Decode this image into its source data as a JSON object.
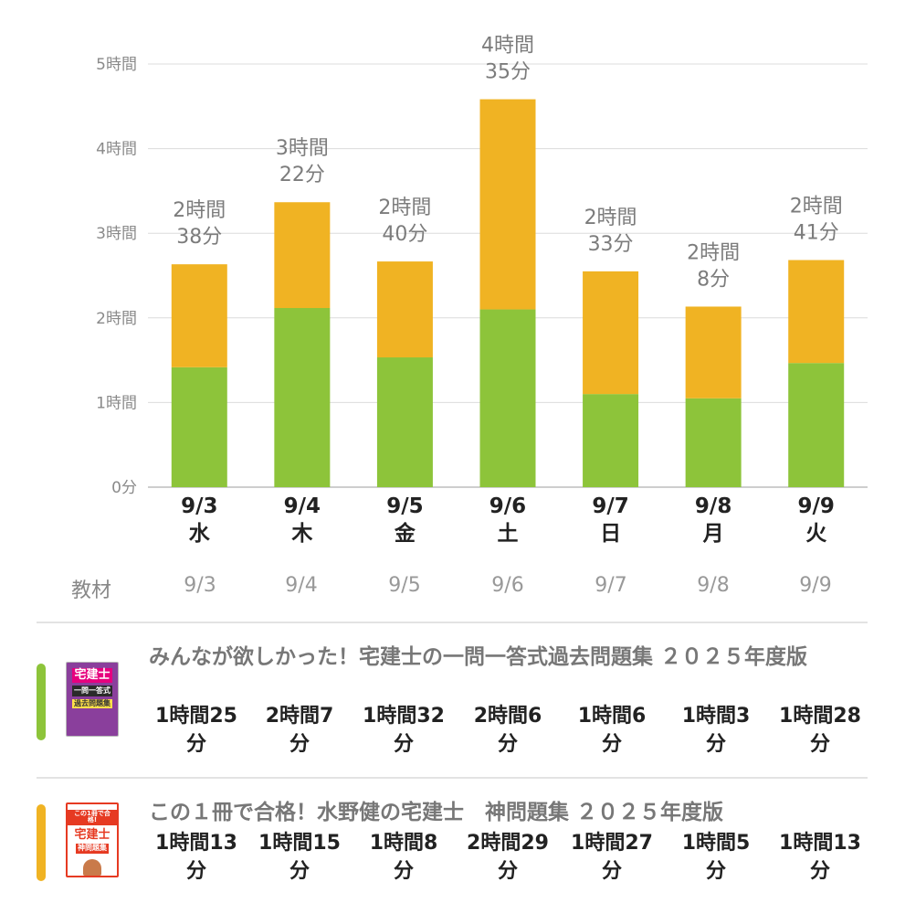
{
  "chart_data": {
    "type": "bar",
    "stacked": true,
    "categories": [
      "9/3",
      "9/4",
      "9/5",
      "9/6",
      "9/7",
      "9/8",
      "9/9"
    ],
    "weekdays": [
      "水",
      "木",
      "金",
      "土",
      "日",
      "月",
      "火"
    ],
    "series": [
      {
        "name": "みんなが欲しかった！宅建士の一問一答式過去問題集 ２０２５年度版",
        "color": "#8dc43a",
        "values_minutes": [
          85,
          127,
          92,
          126,
          66,
          63,
          88
        ]
      },
      {
        "name": "この１冊で合格！水野健の宅建士　神問題集 ２０２５年度版",
        "color": "#f0b323",
        "values_minutes": [
          73,
          75,
          68,
          149,
          87,
          65,
          73
        ]
      }
    ],
    "totals": [
      [
        "2時間",
        "38分"
      ],
      [
        "3時間",
        "22分"
      ],
      [
        "2時間",
        "40分"
      ],
      [
        "4時間",
        "35分"
      ],
      [
        "2時間",
        "33分"
      ],
      [
        "2時間",
        "8分"
      ],
      [
        "2時間",
        "41分"
      ]
    ],
    "y_ticks": [
      "0分",
      "1時間",
      "2時間",
      "3時間",
      "4時間",
      "5時間"
    ],
    "ylim_minutes": [
      0,
      300
    ],
    "grid": true
  },
  "materials_header": {
    "label": "教材",
    "dates": [
      "9/3",
      "9/4",
      "9/5",
      "9/6",
      "9/7",
      "9/8",
      "9/9"
    ]
  },
  "materials": [
    {
      "title": "みんなが欲しかった！宅建士の一問一答式過去問題集 ２０２５年度版",
      "color": "#8dc43a",
      "cover_text": [
        "宅建士",
        "一問一答式",
        "過去問題集"
      ],
      "times": [
        [
          "1時間25",
          "分"
        ],
        [
          "2時間7",
          "分"
        ],
        [
          "1時間32",
          "分"
        ],
        [
          "2時間6",
          "分"
        ],
        [
          "1時間6",
          "分"
        ],
        [
          "1時間3",
          "分"
        ],
        [
          "1時間28",
          "分"
        ]
      ]
    },
    {
      "title": "この１冊で合格！水野健の宅建士　神問題集 ２０２５年度版",
      "color": "#f0b323",
      "cover_text": [
        "この1冊で合格!",
        "宅建士",
        "神問題集"
      ],
      "times": [
        [
          "1時間13",
          "分"
        ],
        [
          "1時間15",
          "分"
        ],
        [
          "1時間8",
          "分"
        ],
        [
          "2時間29",
          "分"
        ],
        [
          "1時間27",
          "分"
        ],
        [
          "1時間5",
          "分"
        ],
        [
          "1時間13",
          "分"
        ]
      ]
    }
  ]
}
